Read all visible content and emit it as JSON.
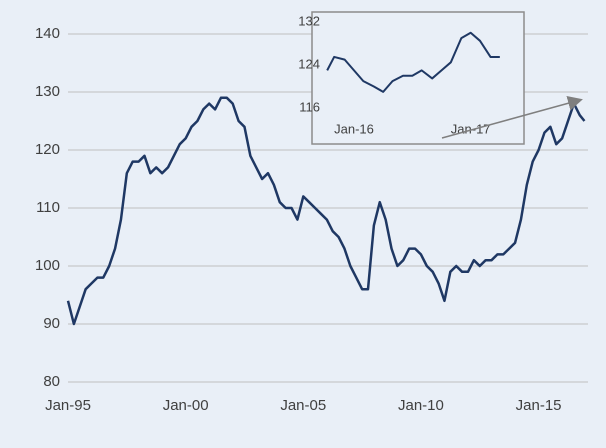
{
  "chart_data": [
    {
      "type": "line",
      "xlim": [
        1995,
        2017.1
      ],
      "ylim": [
        80,
        140
      ],
      "xticks": [
        {
          "value": 1995,
          "label": "Jan-95"
        },
        {
          "value": 2000,
          "label": "Jan-00"
        },
        {
          "value": 2005,
          "label": "Jan-05"
        },
        {
          "value": 2010,
          "label": "Jan-10"
        },
        {
          "value": 2015,
          "label": "Jan-15"
        }
      ],
      "yticks": [
        80,
        90,
        100,
        110,
        120,
        130,
        140
      ],
      "grid": true,
      "series": [
        {
          "color": "#1f3864",
          "x": [
            1995,
            1995.25,
            1995.5,
            1995.75,
            1996,
            1996.25,
            1996.5,
            1996.75,
            1997,
            1997.25,
            1997.5,
            1997.75,
            1998,
            1998.25,
            1998.5,
            1998.75,
            1999,
            1999.25,
            1999.5,
            1999.75,
            2000,
            2000.25,
            2000.5,
            2000.75,
            2001,
            2001.25,
            2001.5,
            2001.75,
            2002,
            2002.25,
            2002.5,
            2002.75,
            2003,
            2003.25,
            2003.5,
            2003.75,
            2004,
            2004.25,
            2004.5,
            2004.75,
            2005,
            2005.25,
            2005.5,
            2005.75,
            2006,
            2006.25,
            2006.5,
            2006.75,
            2007,
            2007.25,
            2007.5,
            2007.75,
            2008,
            2008.25,
            2008.5,
            2008.75,
            2009,
            2009.25,
            2009.5,
            2009.75,
            2010,
            2010.25,
            2010.5,
            2010.75,
            2011,
            2011.25,
            2011.5,
            2011.75,
            2012,
            2012.25,
            2012.5,
            2012.75,
            2013,
            2013.25,
            2013.5,
            2013.75,
            2014,
            2014.25,
            2014.5,
            2014.75,
            2015,
            2015.25,
            2015.5,
            2015.75,
            2016,
            2016.25,
            2016.5,
            2016.75,
            2016.95
          ],
          "values": [
            94,
            90,
            93,
            96,
            97,
            98,
            98,
            100,
            103,
            108,
            116,
            118,
            118,
            119,
            116,
            117,
            116,
            117,
            119,
            121,
            122,
            124,
            125,
            127,
            128,
            127,
            129,
            129,
            128,
            125,
            124,
            119,
            117,
            115,
            116,
            114,
            111,
            110,
            110,
            108,
            112,
            111,
            110,
            109,
            108,
            106,
            105,
            103,
            100,
            98,
            96,
            96,
            107,
            111,
            108,
            103,
            100,
            101,
            103,
            103,
            102,
            100,
            99,
            97,
            94,
            99,
            100,
            99,
            99,
            101,
            100,
            101,
            101,
            102,
            102,
            103,
            104,
            108,
            114,
            118,
            120,
            123,
            124,
            121,
            122,
            125,
            128,
            126,
            125
          ]
        }
      ]
    },
    {
      "type": "line",
      "xlim": [
        2015.76,
        2017.32
      ],
      "ylim": [
        116,
        132
      ],
      "xticks": [
        {
          "value": 2016,
          "label": "Jan-16"
        },
        {
          "value": 2017,
          "label": "Jan-17"
        }
      ],
      "yticks": [
        116,
        124,
        132
      ],
      "grid": false,
      "series": [
        {
          "color": "#1f3864",
          "x": [
            2015.77,
            2015.83,
            2015.92,
            2016,
            2016.08,
            2016.17,
            2016.25,
            2016.33,
            2016.42,
            2016.5,
            2016.58,
            2016.67,
            2016.75,
            2016.83,
            2016.92,
            2017,
            2017.08,
            2017.17,
            2017.25
          ],
          "values": [
            123,
            125.5,
            125,
            123,
            121,
            120,
            119,
            121,
            122,
            122,
            123,
            121.5,
            123,
            124.5,
            129,
            130,
            128.5,
            125.5,
            125.5
          ]
        }
      ]
    }
  ]
}
